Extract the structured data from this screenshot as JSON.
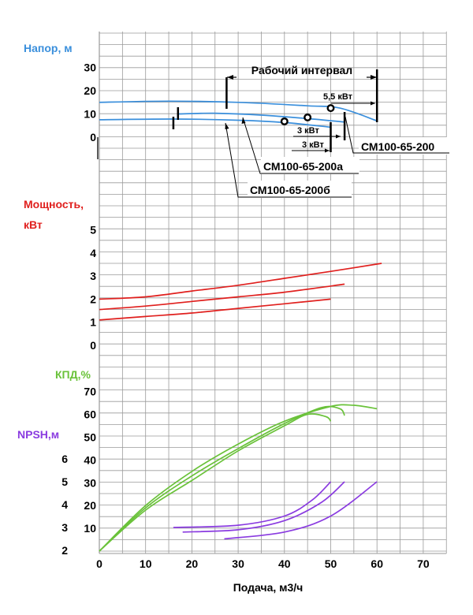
{
  "chart_data": {
    "type": "line",
    "xlabel": "Подача, м3/ч",
    "x_ticks": [
      0,
      10,
      20,
      30,
      40,
      50,
      60,
      70
    ],
    "xlim": [
      0,
      75
    ],
    "colors": {
      "head": "#3a8fdc",
      "power": "#e0201e",
      "efficiency": "#6ac23a",
      "npsh": "#8a3be0",
      "grid": "#9a9a9a"
    },
    "panels": {
      "head": {
        "title": "Напор, м",
        "ticks": [
          0,
          10,
          20,
          30
        ],
        "series": [
          {
            "name": "СМ100-65-200",
            "x": [
              0,
              15,
              30,
              45,
              52,
              60
            ],
            "y": [
              15,
              15.5,
              15,
              13.5,
              12.5,
              7
            ]
          },
          {
            "name": "СМ100-65-200а",
            "x": [
              17,
              25,
              35,
              45,
              53
            ],
            "y": [
              10,
              10.3,
              9.5,
              8,
              6.5
            ]
          },
          {
            "name": "СМ100-65-200б",
            "x": [
              0,
              16,
              30,
              40,
              50
            ],
            "y": [
              7.5,
              7.8,
              7.3,
              6.3,
              4.3
            ]
          }
        ],
        "operating_range_label": "Рабочий интервал",
        "operating_range": [
          27.5,
          60
        ],
        "motor_points": [
          {
            "label": "5,5 кВт",
            "x": 50,
            "y": 12.5
          },
          {
            "label": "3 кВт",
            "x": 45,
            "y": 8.5
          },
          {
            "label": "3 кВт",
            "x": 40,
            "y": 6.8
          }
        ],
        "model_labels": [
          "СМ100-65-200",
          "СМ100-65-200а",
          "СМ100-65-200б"
        ]
      },
      "power": {
        "title_line1": "Мощность,",
        "title_line2": "кВт",
        "ticks": [
          0,
          1,
          2,
          3,
          4,
          5
        ],
        "series": [
          {
            "name": "СМ100-65-200",
            "x": [
              0,
              10,
              20,
              30,
              40,
              50,
              61
            ],
            "y": [
              2.0,
              2.1,
              2.35,
              2.6,
              2.9,
              3.2,
              3.55
            ]
          },
          {
            "name": "СМ100-65-200а",
            "x": [
              0,
              10,
              20,
              30,
              40,
              53
            ],
            "y": [
              1.55,
              1.7,
              1.9,
              2.1,
              2.3,
              2.65
            ]
          },
          {
            "name": "СМ100-65-200б",
            "x": [
              0,
              10,
              20,
              30,
              40,
              50
            ],
            "y": [
              1.1,
              1.25,
              1.4,
              1.6,
              1.8,
              2.0
            ]
          }
        ]
      },
      "efficiency": {
        "title": "КПД,%",
        "ticks": [
          10,
          20,
          30,
          40,
          50,
          60,
          70
        ],
        "series": [
          {
            "name": "СМ100-65-200",
            "x": [
              0,
              10,
              20,
              30,
              40,
              50,
              55,
              60
            ],
            "y": [
              0,
              20,
              35,
              47,
              57,
              63.5,
              64,
              62.5
            ]
          },
          {
            "name": "СМ100-65-200а",
            "x": [
              0,
              10,
              20,
              30,
              40,
              48,
              52,
              53
            ],
            "y": [
              0,
              19,
              33,
              45,
              56,
              63,
              62.5,
              59.5
            ]
          },
          {
            "name": "СМ100-65-200б",
            "x": [
              0,
              10,
              20,
              30,
              40,
              45,
              49,
              50
            ],
            "y": [
              0,
              18,
              31,
              44,
              55,
              60,
              59,
              57
            ]
          }
        ]
      },
      "npsh": {
        "title": "NPSH,м",
        "ticks": [
          2,
          3,
          4,
          5,
          6
        ],
        "series": [
          {
            "name": "СМ100-65-200",
            "x": [
              27,
              40,
              50,
              60
            ],
            "y": [
              2.5,
              2.8,
              3.5,
              5.0
            ]
          },
          {
            "name": "СМ100-65-200а",
            "x": [
              18,
              30,
              40,
              48,
              53
            ],
            "y": [
              2.8,
              2.9,
              3.3,
              4.1,
              5.0
            ]
          },
          {
            "name": "СМ100-65-200б",
            "x": [
              16,
              30,
              40,
              46,
              50
            ],
            "y": [
              3.0,
              3.1,
              3.5,
              4.2,
              5.0
            ]
          }
        ]
      }
    }
  }
}
